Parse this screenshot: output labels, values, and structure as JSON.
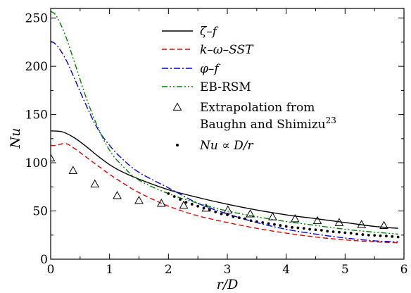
{
  "chart_data": {
    "type": "line",
    "title": "",
    "xlabel": "r/D",
    "ylabel": "Nu",
    "xlim": [
      0,
      6
    ],
    "ylim": [
      0,
      260
    ],
    "xticks": [
      "0",
      "1",
      "2",
      "3",
      "4",
      "5",
      "6"
    ],
    "yticks": [
      "0",
      "50",
      "100",
      "150",
      "200",
      "250"
    ],
    "grid": false,
    "legend_position": "top-right",
    "series": [
      {
        "name": "ζ–f",
        "color": "#000000",
        "dash": "solid",
        "x": [
          0,
          0.2,
          0.4,
          0.6,
          0.8,
          1.0,
          1.2,
          1.5,
          2.0,
          2.5,
          3.0,
          3.5,
          4.0,
          4.5,
          5.0,
          5.5,
          5.9
        ],
        "y": [
          133,
          132,
          126,
          117,
          107,
          98,
          91,
          83,
          72,
          64,
          57,
          51,
          46,
          42,
          38,
          34,
          32
        ]
      },
      {
        "name": "k–ω–SST",
        "color": "#e00000",
        "dash": "dashed",
        "x": [
          0,
          0.1,
          0.25,
          0.4,
          0.6,
          0.8,
          1.0,
          1.2,
          1.5,
          2.0,
          2.5,
          3.0,
          3.5,
          4.0,
          4.5,
          5.0,
          5.5,
          5.9
        ],
        "y": [
          118,
          118,
          120,
          115,
          106,
          97,
          88,
          80,
          69,
          55,
          45,
          38,
          32,
          27,
          23,
          20,
          18,
          17
        ]
      },
      {
        "name": "φ–f",
        "color": "#0000e0",
        "dash": "dashdot",
        "x": [
          0,
          0.1,
          0.25,
          0.4,
          0.6,
          0.8,
          1.0,
          1.2,
          1.5,
          2.0,
          2.5,
          3.0,
          3.5,
          4.0,
          4.5,
          5.0,
          5.5,
          5.9
        ],
        "y": [
          226,
          222,
          208,
          188,
          160,
          135,
          118,
          105,
          90,
          74,
          58,
          47,
          38,
          31,
          26,
          22,
          19,
          18
        ]
      },
      {
        "name": "EB-RSM",
        "color": "#008000",
        "dash": "dashdotdot",
        "x": [
          0,
          0.1,
          0.25,
          0.4,
          0.6,
          0.8,
          1.0,
          1.2,
          1.5,
          2.0,
          2.5,
          3.0,
          3.5,
          4.0,
          4.5,
          5.0,
          5.5,
          5.9
        ],
        "y": [
          257,
          252,
          232,
          205,
          168,
          137,
          113,
          98,
          82,
          68,
          58,
          50,
          44,
          39,
          35,
          31,
          28,
          26
        ]
      },
      {
        "name": "Extrapolation from Baughn and Shimizu",
        "name_superscript": "23",
        "color": "#000000",
        "marker": "triangle",
        "x": [
          0,
          0.38,
          0.75,
          1.13,
          1.5,
          1.88,
          2.26,
          2.64,
          3.01,
          3.39,
          3.77,
          4.15,
          4.53,
          4.9,
          5.28,
          5.66
        ],
        "y": [
          105,
          92,
          78,
          66,
          61,
          58,
          56,
          53,
          51,
          47,
          44,
          42,
          40,
          38,
          36,
          35
        ]
      },
      {
        "name": "Nu ∝ D/r",
        "color": "#000000",
        "marker": "dot",
        "x": [
          2.0,
          2.1,
          2.2,
          2.3,
          2.4,
          2.5,
          2.6,
          2.7,
          2.8,
          2.9,
          3.0,
          3.1,
          3.2,
          3.3,
          3.4,
          3.5,
          3.6,
          3.7,
          3.8,
          3.9,
          4.0,
          4.1,
          4.2,
          4.3,
          4.4,
          4.5,
          4.6,
          4.7,
          4.8,
          4.9,
          5.0,
          5.1,
          5.2,
          5.3,
          5.4,
          5.5,
          5.6,
          5.7,
          5.8,
          5.9
        ],
        "y": [
          68,
          65,
          62,
          59,
          57,
          55,
          53,
          51,
          49,
          47,
          46,
          44,
          43,
          42,
          40,
          39,
          38,
          37,
          36,
          35,
          34,
          33,
          32.5,
          32,
          31,
          30.5,
          30,
          29,
          28.5,
          28,
          27.5,
          27,
          26,
          25.5,
          25,
          24.7,
          24.3,
          24,
          23.5,
          23
        ]
      }
    ]
  }
}
